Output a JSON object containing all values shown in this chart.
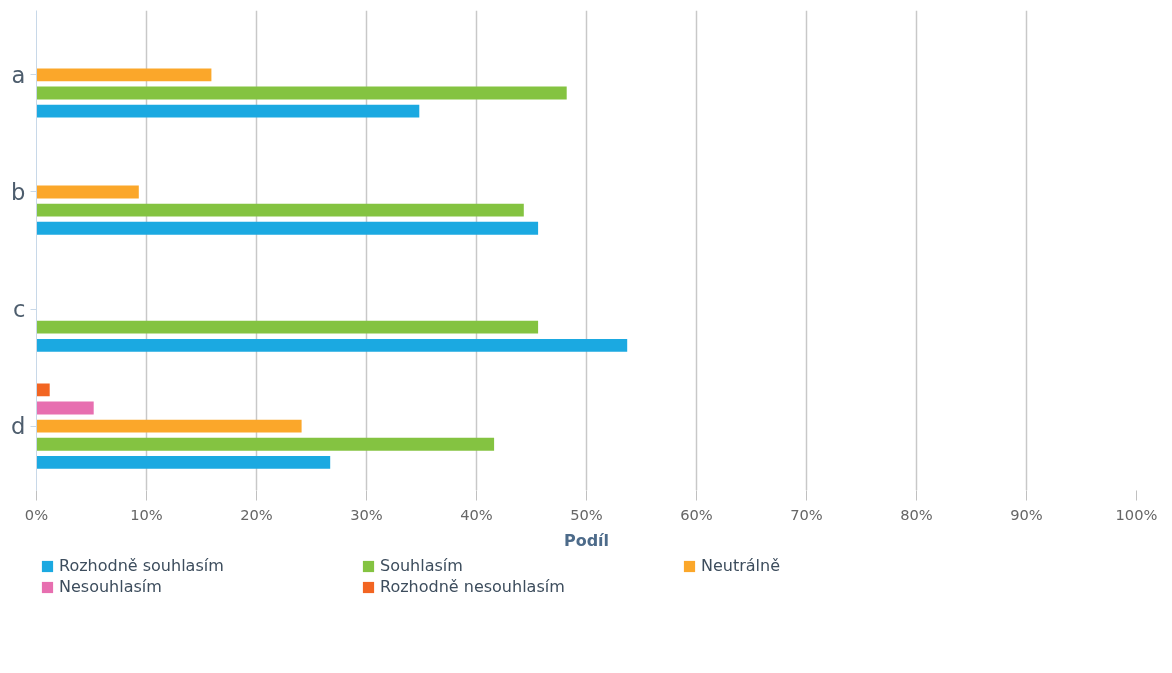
{
  "chart_data": {
    "type": "bar",
    "orientation": "horizontal",
    "xlabel": "Podíl",
    "categories": [
      "a",
      "b",
      "c",
      "d"
    ],
    "series": [
      {
        "name": "Rozhodně souhlasím",
        "color": "#1ba9e1",
        "values": [
          34.8,
          45.6,
          53.7,
          26.7
        ]
      },
      {
        "name": "Souhlasím",
        "color": "#84c341",
        "values": [
          48.2,
          44.3,
          45.6,
          41.6
        ]
      },
      {
        "name": "Neutrálně",
        "color": "#fba72a",
        "values": [
          15.9,
          9.3,
          null,
          24.1
        ]
      },
      {
        "name": "Nesouhlasím",
        "color": "#e76fb0",
        "values": [
          null,
          null,
          null,
          5.2
        ]
      },
      {
        "name": "Rozhodně nesouhlasím",
        "color": "#f26522",
        "values": [
          null,
          null,
          null,
          1.2
        ]
      }
    ],
    "xlim": [
      0,
      100
    ],
    "xticks": [
      {
        "value": 0,
        "label": "0%"
      },
      {
        "value": 10,
        "label": "10%"
      },
      {
        "value": 20,
        "label": "20%"
      },
      {
        "value": 30,
        "label": "30%"
      },
      {
        "value": 40,
        "label": "40%"
      },
      {
        "value": 50,
        "label": "50%"
      },
      {
        "value": 60,
        "label": "60%"
      },
      {
        "value": 70,
        "label": "70%"
      },
      {
        "value": 80,
        "label": "80%"
      },
      {
        "value": 90,
        "label": "90%"
      },
      {
        "value": 100,
        "label": "100%"
      }
    ],
    "grid": "x",
    "legend": "bottom"
  }
}
